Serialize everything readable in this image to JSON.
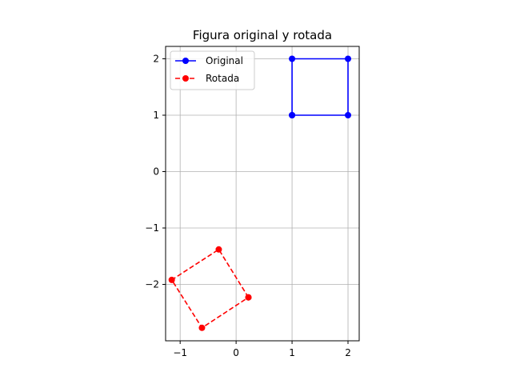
{
  "chart_data": {
    "type": "line",
    "title": "Figura original y rotada",
    "xlabel": "",
    "ylabel": "",
    "xlim": [
      -1.26,
      2.2
    ],
    "ylim": [
      -3.0,
      2.22
    ],
    "grid": true,
    "legend": {
      "placement": "top-left"
    },
    "x_ticks": [
      {
        "value": -1,
        "label": "−1"
      },
      {
        "value": 0,
        "label": "0"
      },
      {
        "value": 1,
        "label": "1"
      },
      {
        "value": 2,
        "label": "2"
      }
    ],
    "y_ticks": [
      {
        "value": 2,
        "label": "2"
      },
      {
        "value": 1,
        "label": "1"
      },
      {
        "value": 0,
        "label": "0"
      },
      {
        "value": -1,
        "label": "−1"
      },
      {
        "value": -2,
        "label": "−2"
      }
    ],
    "series": [
      {
        "name": "Original",
        "color": "#0000ff",
        "linestyle": "solid",
        "marker": "circle",
        "points": [
          [
            1,
            1
          ],
          [
            2,
            1
          ],
          [
            2,
            2
          ],
          [
            1,
            2
          ],
          [
            1,
            1
          ]
        ]
      },
      {
        "name": "Rotada",
        "color": "#ff0000",
        "linestyle": "dashed",
        "marker": "circle",
        "points": [
          [
            0.22,
            -2.23
          ],
          [
            -0.31,
            -1.38
          ],
          [
            -1.15,
            -1.92
          ],
          [
            -0.61,
            -2.77
          ],
          [
            0.22,
            -2.23
          ]
        ]
      }
    ]
  }
}
